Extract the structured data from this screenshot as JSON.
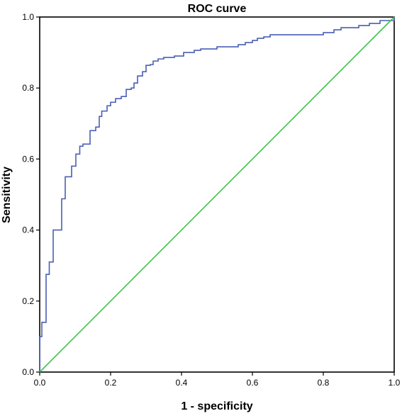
{
  "chart_data": {
    "type": "line",
    "title": "ROC curve",
    "xlabel": "1 - specificity",
    "ylabel": "Sensitivity",
    "xlim": [
      0,
      1
    ],
    "ylim": [
      0,
      1
    ],
    "x_ticks": [
      "0.0",
      "0.2",
      "0.4",
      "0.6",
      "0.8",
      "1.0"
    ],
    "y_ticks": [
      "0.0",
      "0.2",
      "0.4",
      "0.6",
      "0.8",
      "1.0"
    ],
    "grid": false,
    "legend": "none",
    "series": [
      {
        "color": "#4a5fb4",
        "x": [
          0.0,
          0.0,
          0.006,
          0.006,
          0.018,
          0.018,
          0.027,
          0.027,
          0.038,
          0.038,
          0.062,
          0.062,
          0.072,
          0.072,
          0.09,
          0.09,
          0.102,
          0.102,
          0.113,
          0.113,
          0.122,
          0.122,
          0.142,
          0.142,
          0.158,
          0.158,
          0.168,
          0.168,
          0.175,
          0.175,
          0.19,
          0.19,
          0.2,
          0.2,
          0.214,
          0.214,
          0.23,
          0.23,
          0.244,
          0.244,
          0.258,
          0.258,
          0.266,
          0.266,
          0.276,
          0.276,
          0.29,
          0.29,
          0.3,
          0.3,
          0.312,
          0.312,
          0.32,
          0.32,
          0.334,
          0.334,
          0.35,
          0.35,
          0.38,
          0.38,
          0.406,
          0.406,
          0.436,
          0.436,
          0.454,
          0.454,
          0.5,
          0.5,
          0.56,
          0.56,
          0.58,
          0.58,
          0.6,
          0.6,
          0.614,
          0.614,
          0.632,
          0.632,
          0.65,
          0.65,
          0.8,
          0.8,
          0.83,
          0.83,
          0.85,
          0.85,
          0.9,
          0.9,
          0.93,
          0.93,
          0.96,
          0.96,
          1.0,
          1.0
        ],
        "y": [
          0.0,
          0.1,
          0.1,
          0.14,
          0.14,
          0.275,
          0.275,
          0.31,
          0.31,
          0.4,
          0.4,
          0.488,
          0.488,
          0.55,
          0.55,
          0.58,
          0.58,
          0.614,
          0.614,
          0.636,
          0.636,
          0.642,
          0.642,
          0.68,
          0.68,
          0.69,
          0.69,
          0.72,
          0.72,
          0.735,
          0.735,
          0.75,
          0.75,
          0.76,
          0.76,
          0.77,
          0.77,
          0.776,
          0.776,
          0.796,
          0.796,
          0.8,
          0.8,
          0.814,
          0.814,
          0.834,
          0.834,
          0.846,
          0.846,
          0.864,
          0.864,
          0.866,
          0.866,
          0.876,
          0.876,
          0.882,
          0.882,
          0.886,
          0.886,
          0.89,
          0.89,
          0.9,
          0.9,
          0.906,
          0.906,
          0.91,
          0.91,
          0.916,
          0.916,
          0.922,
          0.922,
          0.928,
          0.928,
          0.934,
          0.934,
          0.94,
          0.94,
          0.944,
          0.944,
          0.95,
          0.95,
          0.956,
          0.956,
          0.964,
          0.964,
          0.97,
          0.97,
          0.976,
          0.976,
          0.982,
          0.982,
          0.99,
          0.99,
          1.0
        ]
      },
      {
        "color": "#3cc34a",
        "x": [
          0,
          1
        ],
        "y": [
          0,
          1
        ]
      }
    ]
  }
}
